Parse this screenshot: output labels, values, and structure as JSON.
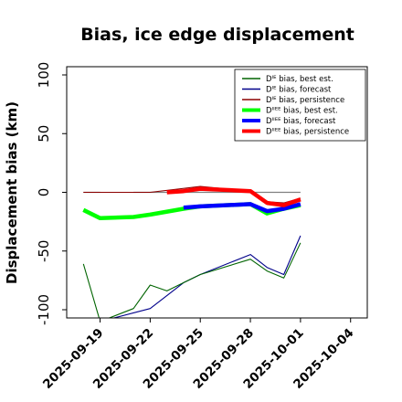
{
  "chart_data": {
    "type": "line",
    "title": "Bias, ice edge displacement",
    "xlabel": "",
    "ylabel": "Displacement bias (km)",
    "ylim": [
      -107,
      107
    ],
    "xlim": [
      "2025-09-17",
      "2025-10-05"
    ],
    "x_ticks": [
      "2025-09-19",
      "2025-09-22",
      "2025-09-25",
      "2025-09-28",
      "2025-10-01",
      "2025-10-04"
    ],
    "highlighted_tick": "2025-09-25",
    "highlight_color": "#1f8a1f",
    "y_ticks": [
      -100,
      -50,
      0,
      50,
      100
    ],
    "legend": {
      "position": "top-right"
    },
    "series": [
      {
        "name": "Dᴵᴱ bias, best est.",
        "color": "#006400",
        "width": "thin",
        "points": [
          [
            "2025-09-18",
            -61
          ],
          [
            "2025-09-19",
            -110
          ],
          [
            "2025-09-21",
            -99
          ],
          [
            "2025-09-22",
            -79
          ],
          [
            "2025-09-23",
            -84
          ],
          [
            "2025-09-24",
            -77
          ],
          [
            "2025-09-25",
            -70
          ],
          [
            "2025-09-28",
            -57
          ],
          [
            "2025-09-29",
            -67
          ],
          [
            "2025-09-30",
            -73
          ],
          [
            "2025-10-01",
            -43
          ]
        ]
      },
      {
        "name": "Dᴵᴱ bias, forecast",
        "color": "#00008b",
        "width": "thin",
        "points": [
          [
            "2025-09-19",
            -110
          ],
          [
            "2025-09-22",
            -99
          ],
          [
            "2025-09-24",
            -77
          ],
          [
            "2025-09-25",
            -70
          ],
          [
            "2025-09-28",
            -53
          ],
          [
            "2025-09-29",
            -64
          ],
          [
            "2025-09-30",
            -70
          ],
          [
            "2025-10-01",
            -37
          ]
        ]
      },
      {
        "name": "Dᴵᴱ bias, persistence",
        "color": "#8b0000",
        "width": "thin",
        "points": [
          [
            "2025-09-18",
            0
          ],
          [
            "2025-09-19",
            0
          ],
          [
            "2025-09-22",
            0
          ],
          [
            "2025-09-25",
            5
          ],
          [
            "2025-09-28",
            1
          ],
          [
            "2025-09-29",
            -8
          ],
          [
            "2025-09-30",
            -9
          ],
          [
            "2025-10-01",
            -5
          ]
        ]
      },
      {
        "name": "Dᴵᴵᴱᴱ bias, best est.",
        "color": "#00ff00",
        "width": "thick",
        "points": [
          [
            "2025-09-18",
            -15
          ],
          [
            "2025-09-19",
            -22
          ],
          [
            "2025-09-21",
            -21
          ],
          [
            "2025-09-22",
            -19
          ],
          [
            "2025-09-24",
            -14
          ],
          [
            "2025-09-25",
            -12
          ],
          [
            "2025-09-28",
            -10
          ],
          [
            "2025-09-29",
            -18
          ],
          [
            "2025-09-30",
            -14
          ],
          [
            "2025-10-01",
            -11
          ]
        ]
      },
      {
        "name": "Dᴵᴵᴱᴱ bias, forecast",
        "color": "#0000ff",
        "width": "thick",
        "points": [
          [
            "2025-09-24",
            -13
          ],
          [
            "2025-09-25",
            -12
          ],
          [
            "2025-09-28",
            -10
          ],
          [
            "2025-09-29",
            -16
          ],
          [
            "2025-09-30",
            -14
          ],
          [
            "2025-10-01",
            -10
          ]
        ]
      },
      {
        "name": "Dᴵᴵᴱᴱ bias, persistence",
        "color": "#ff0000",
        "width": "thick",
        "points": [
          [
            "2025-09-23",
            0
          ],
          [
            "2025-09-24",
            1
          ],
          [
            "2025-09-25",
            3
          ],
          [
            "2025-09-28",
            1
          ],
          [
            "2025-09-29",
            -9
          ],
          [
            "2025-09-30",
            -11
          ],
          [
            "2025-10-01",
            -6
          ]
        ]
      }
    ],
    "reference_lines": {
      "color": "#808080",
      "points": [
        [
          "2025-09-18",
          0
        ],
        [
          "2025-09-19",
          0
        ],
        [
          "2025-09-21",
          0
        ],
        [
          "2025-10-01",
          0
        ]
      ]
    }
  }
}
